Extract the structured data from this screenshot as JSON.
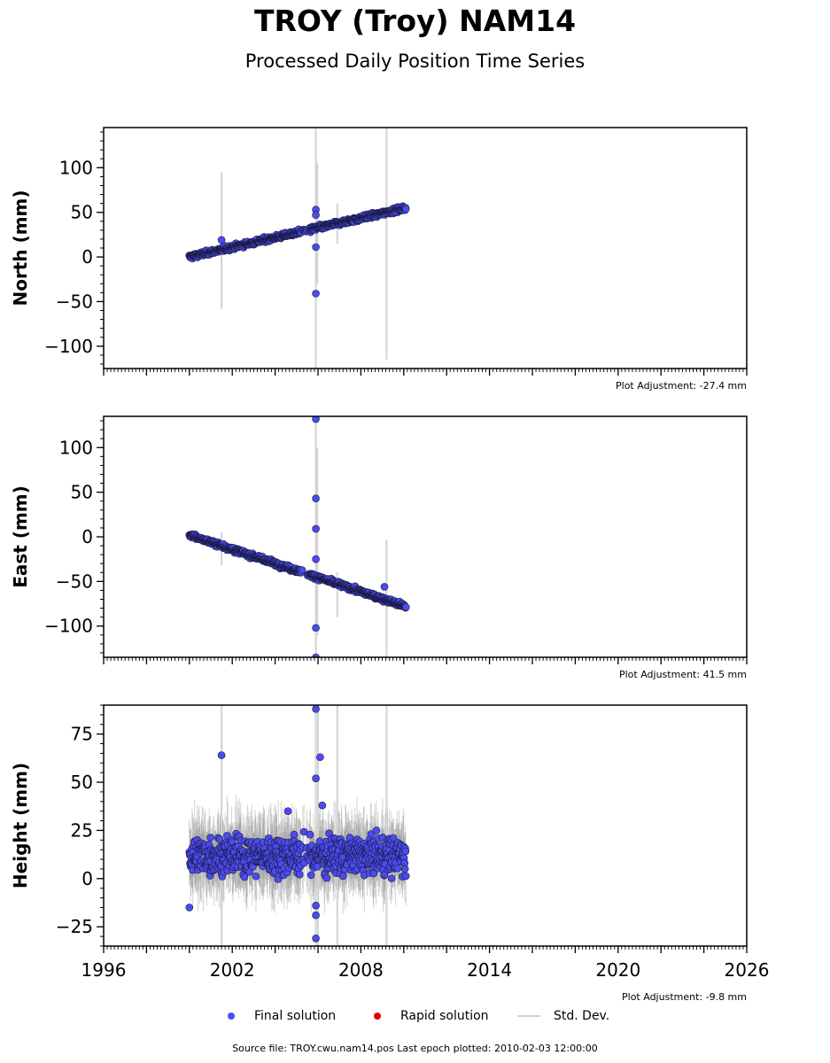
{
  "title": "TROY (Troy) NAM14",
  "subtitle": "Processed Daily Position Time Series",
  "footer": "Source file: TROY.cwu.nam14.pos  Last epoch plotted: 2010-02-03 12:00:00",
  "legend": {
    "final": "Final solution",
    "rapid": "Rapid solution",
    "std": "Std. Dev."
  },
  "colors": {
    "final": "#4b4bf0",
    "rapid": "#e00000",
    "std": "#d3d3d3"
  },
  "chart_data": [
    {
      "type": "scatter",
      "ylabel": "North (mm)",
      "adjustment": "Plot Adjustment: -27.4 mm",
      "xlim": [
        1996,
        2026
      ],
      "ylim": [
        -125,
        145
      ],
      "yticks": [
        -100,
        -50,
        0,
        50,
        100
      ],
      "xticks": [
        1996,
        2002,
        2008,
        2014,
        2020,
        2026
      ],
      "trend": {
        "x": [
          2000.0,
          2010.1
        ],
        "y": [
          0,
          55
        ]
      },
      "scatter_sd": 2.0,
      "outliers": [
        {
          "x": 2001.5,
          "y": 19
        },
        {
          "x": 2005.9,
          "y": 53
        },
        {
          "x": 2005.9,
          "y": 47
        },
        {
          "x": 2005.9,
          "y": 11
        },
        {
          "x": 2005.9,
          "y": -41
        }
      ],
      "errorbars": [
        {
          "x": 2001.5,
          "lo": -58,
          "hi": 95
        },
        {
          "x": 2005.9,
          "lo": -125,
          "hi": 145
        },
        {
          "x": 2005.97,
          "lo": -30,
          "hi": 105
        },
        {
          "x": 2006.9,
          "lo": 15,
          "hi": 60
        },
        {
          "x": 2009.2,
          "lo": -115,
          "hi": 145
        }
      ]
    },
    {
      "type": "scatter",
      "ylabel": "East (mm)",
      "adjustment": "Plot Adjustment: 41.5 mm",
      "xlim": [
        1996,
        2026
      ],
      "ylim": [
        -135,
        135
      ],
      "yticks": [
        -100,
        -50,
        0,
        50,
        100
      ],
      "xticks": [
        1996,
        2002,
        2008,
        2014,
        2020,
        2026
      ],
      "trend": {
        "x": [
          2000.0,
          2010.1
        ],
        "y": [
          2,
          -78
        ]
      },
      "scatter_sd": 2.0,
      "outliers": [
        {
          "x": 2005.9,
          "y": 132
        },
        {
          "x": 2005.9,
          "y": 43
        },
        {
          "x": 2005.9,
          "y": 9
        },
        {
          "x": 2005.9,
          "y": -25
        },
        {
          "x": 2005.9,
          "y": -102
        },
        {
          "x": 2005.9,
          "y": -135
        },
        {
          "x": 2009.1,
          "y": -56
        }
      ],
      "errorbars": [
        {
          "x": 2001.5,
          "lo": -32,
          "hi": 5
        },
        {
          "x": 2005.9,
          "lo": -135,
          "hi": 135
        },
        {
          "x": 2005.97,
          "lo": -110,
          "hi": 100
        },
        {
          "x": 2006.9,
          "lo": -90,
          "hi": -40
        },
        {
          "x": 2009.2,
          "lo": -135,
          "hi": -3
        }
      ]
    },
    {
      "type": "scatter",
      "ylabel": "Height (mm)",
      "adjustment": "Plot Adjustment: -9.8 mm",
      "xlim": [
        1996,
        2026
      ],
      "ylim": [
        -35,
        90
      ],
      "yticks": [
        -25,
        0,
        25,
        50,
        75
      ],
      "xticks": [
        1996,
        2002,
        2008,
        2014,
        2020,
        2026
      ],
      "trend": {
        "x": [
          2000.0,
          2010.1
        ],
        "y": [
          12,
          12
        ]
      },
      "scatter_sd": 7.5,
      "outliers": [
        {
          "x": 2001.5,
          "y": 64
        },
        {
          "x": 2005.9,
          "y": 88
        },
        {
          "x": 2006.1,
          "y": 63
        },
        {
          "x": 2005.9,
          "y": 52
        },
        {
          "x": 2006.2,
          "y": 38
        },
        {
          "x": 2004.6,
          "y": 35
        },
        {
          "x": 2005.9,
          "y": -14
        },
        {
          "x": 2005.9,
          "y": -19
        },
        {
          "x": 2005.9,
          "y": -31
        },
        {
          "x": 2000.0,
          "y": -15
        }
      ],
      "errorbars": [
        {
          "x": 2001.5,
          "lo": -35,
          "hi": 90
        },
        {
          "x": 2005.9,
          "lo": -35,
          "hi": 90
        },
        {
          "x": 2006.0,
          "lo": -35,
          "hi": 90
        },
        {
          "x": 2006.9,
          "lo": -35,
          "hi": 90
        },
        {
          "x": 2009.2,
          "lo": -35,
          "hi": 90
        }
      ]
    }
  ]
}
